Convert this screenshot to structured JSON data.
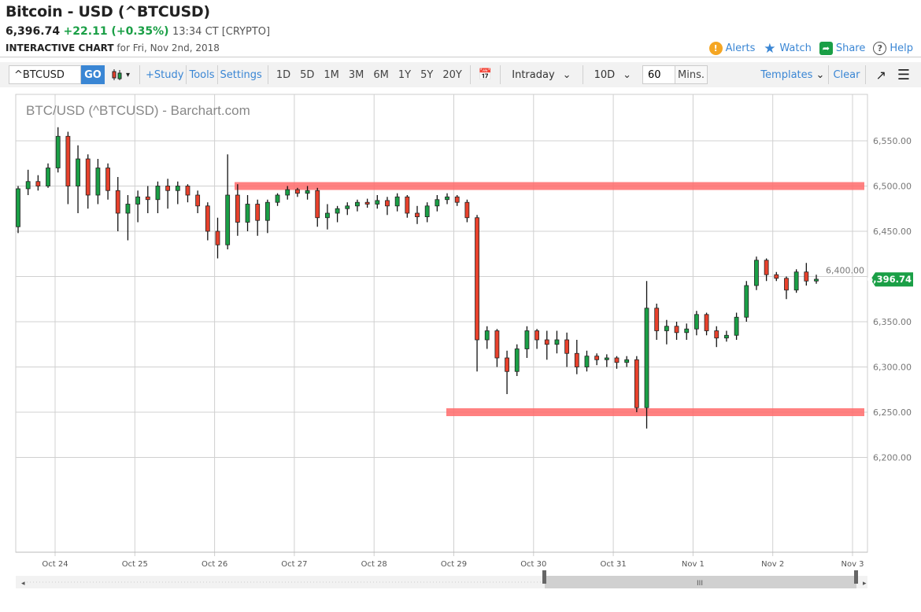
{
  "header": {
    "title": "Bitcoin - USD (^BTCUSD)",
    "last": "6,396.74",
    "change": "+22.11 (+0.35%)",
    "time": "13:34 CT [CRYPTO]",
    "sub_label": "INTERACTIVE CHART",
    "sub_date": "for Fri, Nov 2nd, 2018"
  },
  "actions": [
    {
      "label": "Alerts",
      "icon": "alert-icon",
      "color": "#f5a623"
    },
    {
      "label": "Watch",
      "icon": "star-icon",
      "color": "#3a86d4"
    },
    {
      "label": "Share",
      "icon": "share-icon",
      "color": "#1a9f46"
    },
    {
      "label": "Help",
      "icon": "help-icon",
      "color": "#555"
    }
  ],
  "toolbar": {
    "symbol": "^BTCUSD",
    "go": "GO",
    "study": "+Study",
    "tools": "Tools",
    "settings": "Settings",
    "periods": [
      "1D",
      "5D",
      "1M",
      "3M",
      "6M",
      "1Y",
      "5Y",
      "20Y"
    ],
    "interval_type": "Intraday",
    "range": "10D",
    "minutes": "60",
    "minutes_label": "Mins.",
    "templates": "Templates",
    "clear": "Clear"
  },
  "chart_data": {
    "type": "candlestick",
    "title": "BTC/USD (^BTCUSD) - Barchart.com",
    "ylim": [
      6150,
      6600
    ],
    "yticks": [
      "6,550.00",
      "6,500.00",
      "6,450.00",
      "6,400.00",
      "6,350.00",
      "6,300.00",
      "6,250.00",
      "6,200.00"
    ],
    "ytick_values": [
      6550,
      6500,
      6450,
      6400,
      6350,
      6300,
      6250,
      6200
    ],
    "xticks": [
      "Oct 24",
      "Oct 25",
      "Oct 26",
      "Oct 27",
      "Oct 28",
      "Oct 29",
      "Oct 30",
      "Oct 31",
      "Nov 1",
      "Nov 2",
      "Nov 3"
    ],
    "last_price_label": "6,396.74",
    "last_price": 6396.74,
    "up_color": "#1a9f46",
    "down_color": "#e8412c",
    "band_color": "#ff6b6b",
    "levels": [
      6500,
      6250
    ],
    "grid": true,
    "candles": [
      [
        6455,
        6500,
        6448,
        6497
      ],
      [
        6497,
        6518,
        6490,
        6505
      ],
      [
        6505,
        6512,
        6495,
        6500
      ],
      [
        6500,
        6525,
        6498,
        6520
      ],
      [
        6520,
        6565,
        6515,
        6555
      ],
      [
        6555,
        6560,
        6480,
        6500
      ],
      [
        6500,
        6545,
        6470,
        6530
      ],
      [
        6530,
        6535,
        6475,
        6490
      ],
      [
        6490,
        6530,
        6480,
        6520
      ],
      [
        6520,
        6525,
        6485,
        6495
      ],
      [
        6495,
        6510,
        6450,
        6470
      ],
      [
        6470,
        6490,
        6440,
        6480
      ],
      [
        6480,
        6495,
        6460,
        6488
      ],
      [
        6488,
        6500,
        6470,
        6485
      ],
      [
        6485,
        6505,
        6470,
        6500
      ],
      [
        6500,
        6508,
        6475,
        6495
      ],
      [
        6495,
        6505,
        6480,
        6500
      ],
      [
        6500,
        6502,
        6482,
        6490
      ],
      [
        6490,
        6495,
        6470,
        6478
      ],
      [
        6478,
        6482,
        6440,
        6450
      ],
      [
        6450,
        6465,
        6420,
        6435
      ],
      [
        6435,
        6535,
        6430,
        6490
      ],
      [
        6490,
        6502,
        6445,
        6460
      ],
      [
        6460,
        6490,
        6450,
        6480
      ],
      [
        6480,
        6485,
        6445,
        6462
      ],
      [
        6462,
        6485,
        6448,
        6482
      ],
      [
        6482,
        6492,
        6478,
        6490
      ],
      [
        6490,
        6500,
        6485,
        6496
      ],
      [
        6496,
        6498,
        6488,
        6492
      ],
      [
        6492,
        6500,
        6485,
        6495
      ],
      [
        6495,
        6498,
        6455,
        6465
      ],
      [
        6465,
        6480,
        6452,
        6470
      ],
      [
        6470,
        6478,
        6460,
        6475
      ],
      [
        6475,
        6482,
        6468,
        6478
      ],
      [
        6478,
        6485,
        6472,
        6482
      ],
      [
        6482,
        6486,
        6476,
        6480
      ],
      [
        6480,
        6490,
        6475,
        6484
      ],
      [
        6484,
        6488,
        6468,
        6478
      ],
      [
        6478,
        6492,
        6472,
        6488
      ],
      [
        6488,
        6490,
        6465,
        6470
      ],
      [
        6470,
        6478,
        6458,
        6466
      ],
      [
        6466,
        6482,
        6460,
        6478
      ],
      [
        6478,
        6490,
        6472,
        6485
      ],
      [
        6485,
        6492,
        6480,
        6488
      ],
      [
        6488,
        6490,
        6478,
        6482
      ],
      [
        6482,
        6485,
        6460,
        6465
      ],
      [
        6465,
        6468,
        6295,
        6330
      ],
      [
        6330,
        6345,
        6320,
        6340
      ],
      [
        6340,
        6342,
        6300,
        6310
      ],
      [
        6310,
        6318,
        6270,
        6295
      ],
      [
        6295,
        6325,
        6290,
        6320
      ],
      [
        6320,
        6345,
        6310,
        6340
      ],
      [
        6340,
        6342,
        6320,
        6330
      ],
      [
        6330,
        6340,
        6308,
        6325
      ],
      [
        6325,
        6340,
        6315,
        6330
      ],
      [
        6330,
        6338,
        6300,
        6315
      ],
      [
        6315,
        6330,
        6292,
        6300
      ],
      [
        6300,
        6318,
        6295,
        6312
      ],
      [
        6312,
        6315,
        6302,
        6308
      ],
      [
        6308,
        6314,
        6300,
        6310
      ],
      [
        6310,
        6312,
        6298,
        6305
      ],
      [
        6305,
        6312,
        6300,
        6308
      ],
      [
        6308,
        6312,
        6250,
        6255
      ],
      [
        6255,
        6395,
        6232,
        6365
      ],
      [
        6365,
        6370,
        6330,
        6340
      ],
      [
        6340,
        6352,
        6325,
        6345
      ],
      [
        6345,
        6350,
        6330,
        6338
      ],
      [
        6338,
        6348,
        6330,
        6342
      ],
      [
        6342,
        6362,
        6335,
        6358
      ],
      [
        6358,
        6360,
        6335,
        6340
      ],
      [
        6340,
        6345,
        6322,
        6332
      ],
      [
        6332,
        6340,
        6328,
        6335
      ],
      [
        6335,
        6360,
        6330,
        6355
      ],
      [
        6355,
        6395,
        6350,
        6390
      ],
      [
        6390,
        6422,
        6385,
        6418
      ],
      [
        6418,
        6420,
        6395,
        6402
      ],
      [
        6402,
        6405,
        6395,
        6398
      ],
      [
        6398,
        6400,
        6375,
        6385
      ],
      [
        6385,
        6408,
        6382,
        6405
      ],
      [
        6405,
        6415,
        6390,
        6395
      ],
      [
        6395,
        6402,
        6392,
        6397
      ]
    ]
  }
}
